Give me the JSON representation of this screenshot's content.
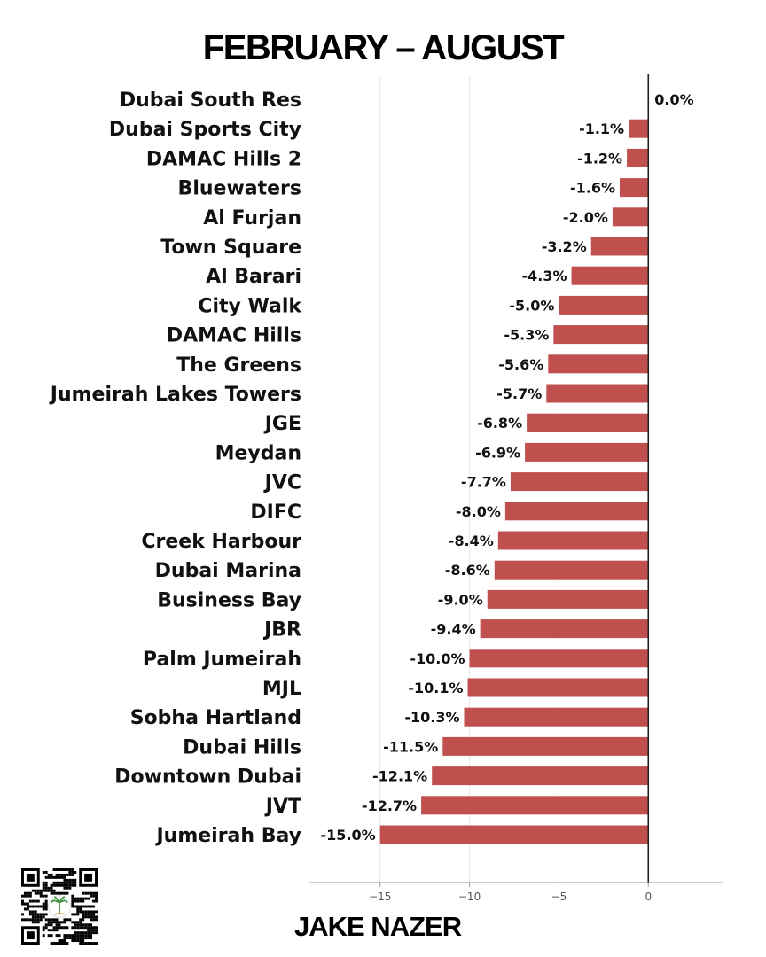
{
  "header": {
    "title": "FEBRUARY – AUGUST"
  },
  "footer": {
    "author": "JAKE NAZER"
  },
  "colors": {
    "bar": "#c0504d",
    "axis": "#222222",
    "grid": "#e6e6e6"
  },
  "chart_data": {
    "type": "bar",
    "orientation": "horizontal",
    "title": "FEBRUARY – AUGUST",
    "xlabel": "",
    "ylabel": "",
    "xlim": [
      -19,
      4.2
    ],
    "xticks": [
      -15,
      -10,
      -5,
      0
    ],
    "xtick_labels": [
      "−15",
      "−10",
      "−5",
      "0"
    ],
    "grid": true,
    "categories": [
      "Dubai South Res",
      "Dubai Sports City",
      "DAMAC Hills 2",
      "Bluewaters",
      "Al Furjan",
      "Town Square",
      "Al Barari",
      "City Walk",
      "DAMAC Hills",
      "The Greens",
      "Jumeirah Lakes Towers",
      "JGE",
      "Meydan",
      "JVC",
      "DIFC",
      "Creek Harbour",
      "Dubai Marina",
      "Business Bay",
      "JBR",
      "Palm Jumeirah",
      "MJL",
      "Sobha Hartland",
      "Dubai Hills",
      "Downtown Dubai",
      "JVT",
      "Jumeirah Bay"
    ],
    "values": [
      0.0,
      -1.1,
      -1.2,
      -1.6,
      -2.0,
      -3.2,
      -4.3,
      -5.0,
      -5.3,
      -5.6,
      -5.7,
      -6.8,
      -6.9,
      -7.7,
      -8.0,
      -8.4,
      -8.6,
      -9.0,
      -9.4,
      -10.0,
      -10.1,
      -10.3,
      -11.5,
      -12.1,
      -12.7,
      -15.0
    ],
    "value_labels": [
      "0.0%",
      "-1.1%",
      "-1.2%",
      "-1.6%",
      "-2.0%",
      "-3.2%",
      "-4.3%",
      "-5.0%",
      "-5.3%",
      "-5.6%",
      "-5.7%",
      "-6.8%",
      "-6.9%",
      "-7.7%",
      "-8.0%",
      "-8.4%",
      "-8.6%",
      "-9.0%",
      "-9.4%",
      "-10.0%",
      "-10.1%",
      "-10.3%",
      "-11.5%",
      "-12.1%",
      "-12.7%",
      "-15.0%"
    ]
  }
}
